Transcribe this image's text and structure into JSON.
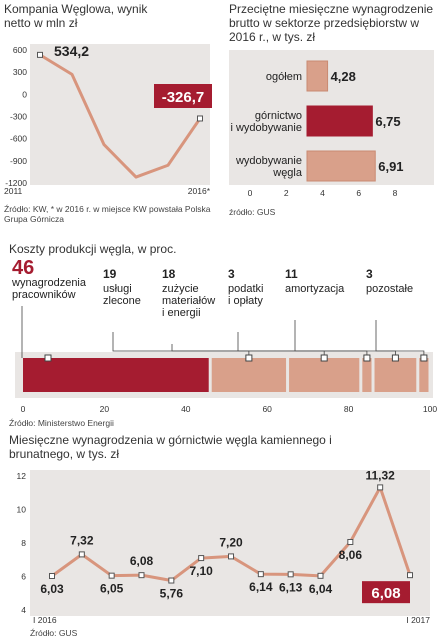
{
  "colors": {
    "salmon": "#d9a08a",
    "salmon_line": "#d8957d",
    "crimson": "#a51c30",
    "panel": "#e9e6e4"
  },
  "chart_kw": {
    "title": "Kompania Węglowa, wynik netto w mln zł",
    "source": "Źródło: KW, * w 2016 r. w miejsce KW powstała Polska Grupa Górnicza",
    "chart_data": {
      "type": "line",
      "x": [
        "2011",
        "2012",
        "2013",
        "2014",
        "2015",
        "2016*"
      ],
      "values": [
        534.2,
        270,
        -680,
        -1120,
        -960,
        -326.7
      ],
      "ylim": [
        -1200,
        600
      ],
      "yticks": [
        "600",
        "300",
        "0",
        "-300",
        "-600",
        "-900",
        "-1200"
      ],
      "xtick_labels": [
        "2011",
        "2016*"
      ],
      "labels": {
        "first": "534,2",
        "last": "-326,7"
      }
    }
  },
  "chart_wages_sector": {
    "title": "Przeciętne miesięczne wynagrodzenie brutto w sektorze przedsiębiorstw w 2016 r., w tys. zł",
    "source": "źródło: GUS",
    "chart_data": {
      "type": "bar",
      "categories": [
        "ogółem",
        "górnictwo i wydobywanie",
        "wydobywanie węgla"
      ],
      "category_lines": [
        [
          "ogółem"
        ],
        [
          "górnictwo",
          "i wydobywanie"
        ],
        [
          "wydobywanie",
          "węgla"
        ]
      ],
      "values": [
        4.28,
        6.75,
        6.91
      ],
      "value_labels": [
        "4,28",
        "6,75",
        "6,91"
      ],
      "xlim": [
        0,
        8
      ],
      "xticks": [
        "0",
        "2",
        "4",
        "6",
        "8"
      ]
    }
  },
  "chart_costs": {
    "title": "Koszty produkcji węgla, w proc.",
    "source": "Źródło: Ministerstwo Energii",
    "chart_data": {
      "type": "bar",
      "stacked": true,
      "segments": [
        {
          "value": 46,
          "label": "46",
          "desc": [
            "wynagrodzenia",
            "pracowników"
          ]
        },
        {
          "value": 19,
          "label": "19",
          "desc": [
            "usługi",
            "zlecone"
          ]
        },
        {
          "value": 18,
          "label": "18",
          "desc": [
            "zużycie",
            "materiałów",
            "i energii"
          ]
        },
        {
          "value": 3,
          "label": "3",
          "desc": [
            "podatki",
            "i opłaty"
          ]
        },
        {
          "value": 11,
          "label": "11",
          "desc": [
            "amortyzacja"
          ]
        },
        {
          "value": 3,
          "label": "3",
          "desc": [
            "pozostałe"
          ]
        }
      ],
      "xlim": [
        0,
        100
      ],
      "xticks": [
        "0",
        "20",
        "40",
        "60",
        "80",
        "100"
      ]
    }
  },
  "chart_mining_wages": {
    "title": "Miesięczne wynagrodzenia w górnictwie węgla kamiennego i brunatnego, w tys. zł",
    "source": "Źródło: GUS",
    "chart_data": {
      "type": "line",
      "values": [
        6.03,
        7.32,
        6.05,
        6.08,
        5.76,
        7.1,
        7.2,
        6.14,
        6.13,
        6.04,
        8.06,
        11.32,
        6.08
      ],
      "value_labels": [
        "6,03",
        "7,32",
        "6,05",
        "6,08",
        "5,76",
        "7,10",
        "7,20",
        "6,14",
        "6,13",
        "6,04",
        "8,06",
        "11,32",
        "6,08"
      ],
      "ylim": [
        4,
        12
      ],
      "yticks": [
        "12",
        "10",
        "8",
        "6",
        "4"
      ],
      "xtick_labels": [
        "I 2016",
        "I 2017"
      ]
    }
  }
}
